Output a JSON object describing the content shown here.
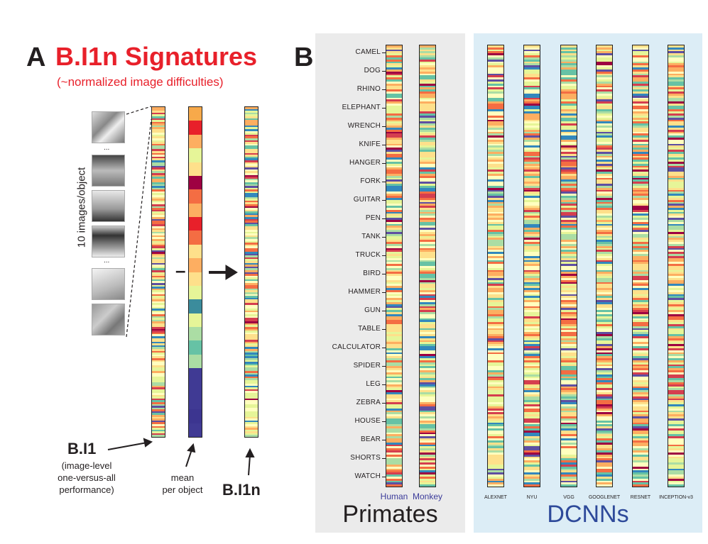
{
  "panel_a": {
    "letter": "A",
    "title": "B.I1n Signatures",
    "subtitle": "(~normalized image difficulties)",
    "images_label": "10 images/object",
    "ellipsis": "...",
    "minus": "–",
    "labels": {
      "b_i1": "B.I1",
      "b_i1_desc": [
        "(image-level",
        "one-versus-all",
        "performance)"
      ],
      "mean_desc": [
        "mean",
        "per object"
      ],
      "b_i1n": "B.I1n"
    }
  },
  "panel_b": {
    "letter": "B",
    "objects": [
      "CAMEL",
      "DOG",
      "RHINO",
      "ELEPHANT",
      "WRENCH",
      "KNIFE",
      "HANGER",
      "FORK",
      "GUITAR",
      "PEN",
      "TANK",
      "TRUCK",
      "BIRD",
      "HAMMER",
      "GUN",
      "TABLE",
      "CALCULATOR",
      "SPIDER",
      "LEG",
      "ZEBRA",
      "HOUSE",
      "BEAR",
      "SHORTS",
      "WATCH"
    ],
    "primates": {
      "title": "Primates",
      "columns": [
        "Human",
        "Monkey"
      ]
    },
    "dcnns": {
      "title": "DCNNs",
      "columns": [
        "ALEXNET",
        "NYU",
        "VGG",
        "GOOGLENET",
        "RESNET",
        "INCEPTION-v3"
      ]
    }
  },
  "colors": {
    "title_red": "#e8202a",
    "primates_bg": "#ebebeb",
    "dcnns_bg": "#dcedf6",
    "dcnns_title": "#2e4a9a",
    "palette": [
      "#9e0142",
      "#d53e4f",
      "#f46d43",
      "#fdae61",
      "#fee08b",
      "#ffffbf",
      "#e6f598",
      "#abdda4",
      "#66c2a5",
      "#3288bd",
      "#5e4fa2"
    ]
  }
}
